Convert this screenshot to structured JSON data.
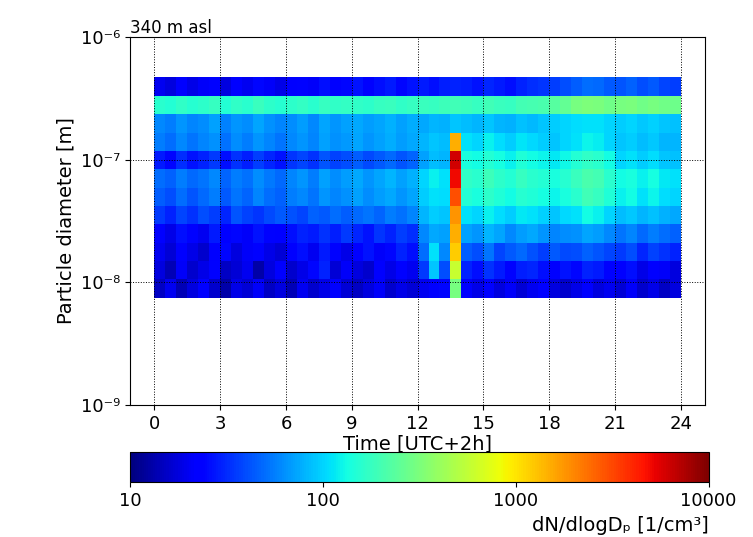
{
  "chart_data": {
    "type": "heatmap",
    "title": "340 m asl",
    "x_label": "Time [UTC+2h]",
    "y_label": "Particle diameter [m]",
    "colorbar_label": "dN/dlogDₚ [1/cm³]",
    "color": "jet",
    "log": true,
    "grid": true,
    "xlim": [
      -1.1,
      25.1
    ],
    "xticks": [
      0,
      3,
      6,
      9,
      12,
      15,
      18,
      21,
      24
    ],
    "ylim": [
      1e-09,
      1e-06
    ],
    "yticks": [
      {
        "value": 1e-09,
        "label": "10⁻⁹"
      },
      {
        "value": 1e-08,
        "label": "10⁻⁸"
      },
      {
        "value": 1e-07,
        "label": "10⁻⁷"
      },
      {
        "value": 1e-06,
        "label": "10⁻⁶"
      }
    ],
    "color_range": [
      10,
      10000
    ],
    "color_ticks": [
      10,
      100,
      1000,
      10000
    ],
    "x_edges": [
      0,
      0.5,
      1,
      1.5,
      2,
      2.5,
      3,
      3.5,
      4,
      4.5,
      5,
      5.5,
      6,
      6.5,
      7,
      7.5,
      8,
      8.5,
      9,
      9.5,
      10,
      10.5,
      11,
      11.5,
      12,
      12.5,
      13,
      13.5,
      14,
      14.5,
      15,
      15.5,
      16,
      16.5,
      17,
      17.5,
      18,
      18.5,
      19,
      19.5,
      20,
      20.5,
      21,
      21.5,
      22,
      22.5,
      23,
      23.5,
      24
    ],
    "y_edges": [
      7.5e-09,
      1.06e-08,
      1.49e-08,
      2.1e-08,
      2.97e-08,
      4.19e-08,
      5.92e-08,
      8.35e-08,
      1.18e-07,
      1.66e-07,
      2.35e-07,
      3.32e-07,
      4.68e-07
    ],
    "cells": [
      [
        15,
        20,
        14,
        18,
        22,
        16,
        13,
        19,
        17,
        21,
        15,
        18,
        14,
        20,
        16,
        19,
        23,
        17,
        15,
        18,
        21,
        16,
        19,
        17,
        20,
        22,
        25,
        300,
        22,
        19,
        24,
        18,
        21,
        17,
        20,
        23,
        18,
        16,
        19,
        22,
        18,
        20,
        17,
        21,
        16,
        19,
        15,
        18
      ],
      [
        18,
        14,
        21,
        16,
        19,
        24,
        15,
        17,
        20,
        13,
        18,
        22,
        16,
        19,
        25,
        30,
        17,
        21,
        18,
        16,
        22,
        19,
        24,
        20,
        35,
        90,
        40,
        600,
        30,
        26,
        33,
        28,
        24,
        29,
        31,
        26,
        22,
        27,
        25,
        30,
        28,
        24,
        22,
        26,
        19,
        23,
        21,
        18
      ],
      [
        20,
        17,
        23,
        19,
        16,
        22,
        25,
        18,
        21,
        24,
        19,
        17,
        22,
        26,
        20,
        28,
        24,
        19,
        23,
        27,
        21,
        25,
        30,
        26,
        50,
        110,
        60,
        1200,
        45,
        40,
        52,
        38,
        44,
        48,
        41,
        36,
        43,
        39,
        40,
        46,
        42,
        38,
        35,
        40,
        31,
        37,
        33,
        30
      ],
      [
        22,
        19,
        26,
        24,
        20,
        28,
        23,
        25,
        21,
        27,
        24,
        22,
        26,
        30,
        28,
        33,
        29,
        35,
        31,
        27,
        34,
        30,
        36,
        32,
        60,
        75,
        70,
        1500,
        70,
        65,
        80,
        72,
        60,
        68,
        75,
        66,
        58,
        62,
        64,
        72,
        68,
        60,
        52,
        58,
        48,
        55,
        50,
        46
      ],
      [
        35,
        30,
        38,
        33,
        40,
        36,
        31,
        42,
        37,
        34,
        39,
        44,
        41,
        38,
        46,
        43,
        50,
        45,
        48,
        52,
        47,
        55,
        51,
        58,
        80,
        95,
        90,
        1800,
        110,
        100,
        120,
        105,
        95,
        115,
        108,
        98,
        90,
        102,
        110,
        130,
        120,
        100,
        85,
        92,
        80,
        88,
        78,
        74
      ],
      [
        45,
        40,
        50,
        42,
        48,
        55,
        44,
        52,
        47,
        58,
        50,
        46,
        55,
        60,
        52,
        66,
        58,
        63,
        70,
        61,
        68,
        74,
        65,
        72,
        95,
        110,
        105,
        3000,
        150,
        140,
        165,
        145,
        130,
        155,
        148,
        135,
        125,
        140,
        160,
        190,
        175,
        145,
        120,
        130,
        110,
        125,
        105,
        100
      ],
      [
        50,
        46,
        55,
        48,
        52,
        60,
        47,
        56,
        51,
        62,
        54,
        49,
        58,
        65,
        56,
        70,
        62,
        68,
        74,
        66,
        72,
        80,
        70,
        78,
        100,
        120,
        110,
        5000,
        170,
        160,
        185,
        165,
        150,
        175,
        160,
        150,
        140,
        155,
        180,
        210,
        195,
        160,
        130,
        140,
        120,
        135,
        115,
        110
      ],
      [
        28,
        25,
        32,
        27,
        30,
        35,
        26,
        33,
        29,
        36,
        31,
        27,
        34,
        38,
        33,
        42,
        37,
        40,
        45,
        39,
        44,
        48,
        42,
        47,
        70,
        85,
        80,
        6000,
        140,
        130,
        150,
        135,
        120,
        145,
        132,
        125,
        115,
        128,
        150,
        170,
        160,
        130,
        100,
        110,
        95,
        105,
        90,
        88
      ],
      [
        55,
        50,
        60,
        52,
        58,
        64,
        51,
        62,
        56,
        66,
        59,
        53,
        60,
        65,
        58,
        70,
        63,
        67,
        72,
        66,
        70,
        76,
        68,
        74,
        80,
        90,
        85,
        1500,
        110,
        100,
        120,
        105,
        95,
        112,
        102,
        96,
        90,
        100,
        110,
        125,
        118,
        100,
        90,
        95,
        85,
        92,
        82,
        80
      ],
      [
        60,
        55,
        65,
        58,
        62,
        70,
        57,
        66,
        61,
        72,
        64,
        58,
        62,
        68,
        60,
        72,
        65,
        70,
        74,
        68,
        72,
        78,
        70,
        76,
        75,
        80,
        78,
        90,
        85,
        80,
        90,
        82,
        78,
        88,
        84,
        90,
        95,
        100,
        105,
        110,
        108,
        100,
        95,
        100,
        92,
        98,
        90,
        88
      ],
      [
        160,
        150,
        170,
        155,
        165,
        175,
        150,
        168,
        158,
        180,
        162,
        155,
        165,
        172,
        160,
        178,
        168,
        174,
        170,
        165,
        175,
        182,
        170,
        178,
        180,
        175,
        185,
        190,
        185,
        178,
        190,
        182,
        175,
        195,
        200,
        210,
        230,
        260,
        300,
        320,
        310,
        290,
        300,
        310,
        290,
        305,
        285,
        280
      ],
      [
        20,
        18,
        22,
        19,
        21,
        24,
        18,
        23,
        20,
        25,
        21,
        19,
        22,
        24,
        21,
        26,
        23,
        25,
        27,
        24,
        26,
        28,
        25,
        27,
        28,
        26,
        29,
        30,
        29,
        27,
        31,
        28,
        26,
        30,
        32,
        34,
        36,
        40,
        45,
        50,
        48,
        44,
        42,
        46,
        40,
        44,
        38,
        36
      ]
    ]
  }
}
